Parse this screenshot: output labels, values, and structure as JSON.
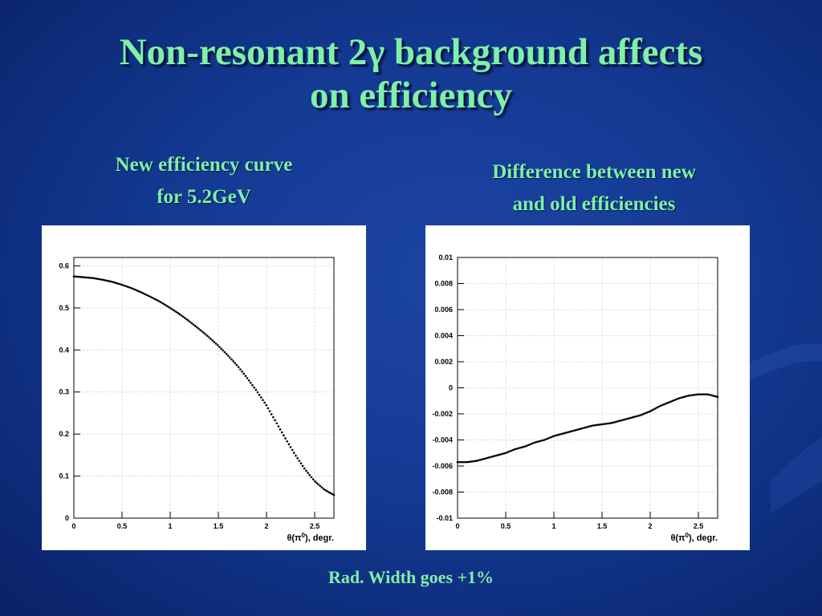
{
  "slide": {
    "title_line1": "Non-resonant 2γ background affects",
    "title_line2": "on efficiency",
    "left_caption_line1": "New efficiency curve",
    "left_caption_line2": "for 5.2GeV",
    "right_caption_line1": "Difference between new",
    "right_caption_line2": "and old efficiencies",
    "footer": "Rad. Width goes +1%"
  },
  "colors": {
    "text_accent": "#7ff0a8",
    "background": "#143a93",
    "plot_background": "#ffffff",
    "data_marker": "#000000",
    "grid": "#cfcfcf"
  },
  "chart_data": [
    {
      "type": "scatter",
      "xlabel": "θ(π0), degr.",
      "xlim": [
        0,
        2.7
      ],
      "ylim": [
        0,
        0.62
      ],
      "grid": true,
      "xticks": [
        "0",
        "0.5",
        "1",
        "1.5",
        "2",
        "2.5"
      ],
      "yticks": [
        "0",
        "0.1",
        "0.2",
        "0.3",
        "0.4",
        "0.5",
        "0.6"
      ],
      "series": [
        {
          "x": [
            0.0,
            0.1,
            0.2,
            0.3,
            0.4,
            0.5,
            0.6,
            0.7,
            0.8,
            0.9,
            1.0,
            1.1,
            1.2,
            1.3,
            1.4,
            1.5,
            1.6,
            1.7,
            1.8,
            1.9,
            2.0,
            2.1,
            2.2,
            2.3,
            2.4,
            2.5,
            2.6,
            2.7
          ],
          "y": [
            0.575,
            0.573,
            0.571,
            0.567,
            0.562,
            0.555,
            0.547,
            0.537,
            0.526,
            0.514,
            0.5,
            0.485,
            0.468,
            0.45,
            0.431,
            0.41,
            0.387,
            0.362,
            0.333,
            0.302,
            0.268,
            0.228,
            0.188,
            0.15,
            0.116,
            0.088,
            0.068,
            0.055
          ]
        }
      ]
    },
    {
      "type": "scatter",
      "xlabel": "θ(π0), degr.",
      "xlim": [
        0,
        2.7
      ],
      "ylim": [
        -0.01,
        0.01
      ],
      "grid": true,
      "xticks": [
        "0",
        "0.5",
        "1",
        "1.5",
        "2",
        "2.5"
      ],
      "yticks": [
        "-0.01",
        "-0.008",
        "-0.006",
        "-0.004",
        "-0.002",
        "0",
        "0.002",
        "0.004",
        "0.006",
        "0.008",
        "0.01"
      ],
      "series": [
        {
          "x": [
            0.0,
            0.1,
            0.2,
            0.3,
            0.4,
            0.5,
            0.6,
            0.7,
            0.8,
            0.9,
            1.0,
            1.1,
            1.2,
            1.3,
            1.4,
            1.5,
            1.6,
            1.7,
            1.8,
            1.9,
            2.0,
            2.1,
            2.2,
            2.3,
            2.4,
            2.5,
            2.6,
            2.7
          ],
          "y": [
            -0.0057,
            -0.0057,
            -0.0056,
            -0.0054,
            -0.0052,
            -0.005,
            -0.0047,
            -0.0045,
            -0.0042,
            -0.004,
            -0.0037,
            -0.0035,
            -0.0033,
            -0.0031,
            -0.0029,
            -0.0028,
            -0.0027,
            -0.0025,
            -0.0023,
            -0.0021,
            -0.0018,
            -0.0014,
            -0.0011,
            -0.0008,
            -0.0006,
            -0.0005,
            -0.0005,
            -0.0007
          ]
        }
      ]
    }
  ]
}
